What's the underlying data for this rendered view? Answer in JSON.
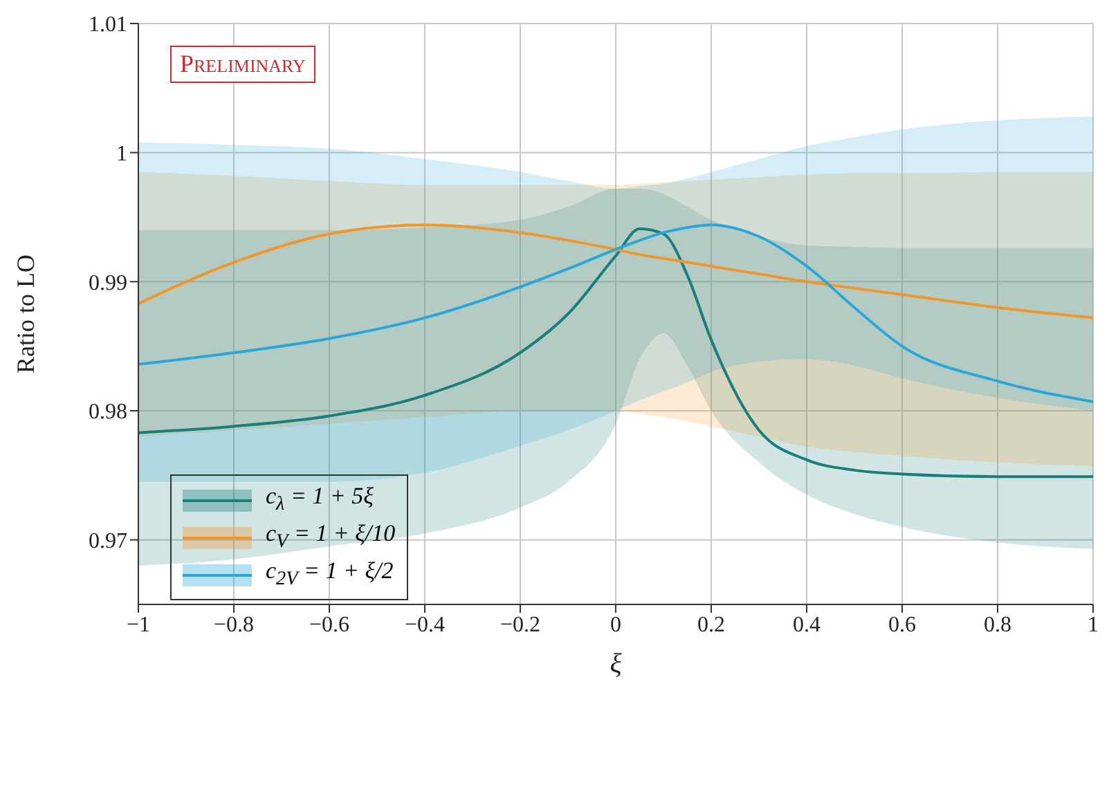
{
  "chart_data": {
    "type": "line",
    "xlabel": "ξ",
    "ylabel": "Ratio to LO",
    "annotations": [
      "Preliminary"
    ],
    "x": [
      -1,
      -0.8,
      -0.6,
      -0.4,
      -0.2,
      -0.1,
      0,
      0.05,
      0.1,
      0.15,
      0.2,
      0.3,
      0.4,
      0.5,
      0.6,
      0.8,
      1
    ],
    "series": [
      {
        "name": "c$_{λ}$ = 1 + 5ξ",
        "color": "#1a7f7a",
        "values": [
          0.9783,
          0.9788,
          0.9796,
          0.9812,
          0.9845,
          0.9875,
          0.992,
          0.9941,
          0.9937,
          0.9905,
          0.9855,
          0.9785,
          0.9762,
          0.9754,
          0.9751,
          0.9749,
          0.9749
        ],
        "upper": [
          0.994,
          0.994,
          0.994,
          0.9942,
          0.9948,
          0.9958,
          0.9972,
          0.9972,
          0.9968,
          0.9958,
          0.9948,
          0.9935,
          0.9928,
          0.9927,
          0.9926,
          0.9926,
          0.9926
        ],
        "lower": [
          0.968,
          0.9685,
          0.9695,
          0.9705,
          0.9725,
          0.9745,
          0.979,
          0.984,
          0.986,
          0.9835,
          0.98,
          0.976,
          0.9735,
          0.972,
          0.971,
          0.9698,
          0.9693
        ]
      },
      {
        "name": "c$_{V}$ = 1 + ξ/10",
        "color": "#f0962a",
        "values": [
          0.9883,
          0.9915,
          0.9937,
          0.9944,
          0.9938,
          0.9932,
          0.9925,
          0.9921,
          0.9918,
          0.9915,
          0.9912,
          0.9906,
          0.99,
          0.9895,
          0.989,
          0.988,
          0.9872
        ],
        "upper": [
          0.9985,
          0.9982,
          0.9978,
          0.9975,
          0.9975,
          0.9975,
          0.9975,
          0.9976,
          0.9977,
          0.9978,
          0.9979,
          0.9981,
          0.9983,
          0.9984,
          0.9984,
          0.9985,
          0.9985
        ],
        "lower": [
          0.978,
          0.9785,
          0.979,
          0.9795,
          0.98,
          0.98,
          0.98,
          0.9798,
          0.9795,
          0.9792,
          0.9788,
          0.978,
          0.9772,
          0.9768,
          0.9765,
          0.976,
          0.9757
        ]
      },
      {
        "name": "c$_{2V}$ = 1 + ξ/2",
        "color": "#2aa7d8",
        "values": [
          0.9836,
          0.9845,
          0.9856,
          0.9872,
          0.9896,
          0.991,
          0.9925,
          0.9932,
          0.9938,
          0.9942,
          0.9944,
          0.9935,
          0.9912,
          0.988,
          0.985,
          0.9823,
          0.9807
        ],
        "upper": [
          1.0008,
          1.0006,
          1.0003,
          0.9995,
          0.9985,
          0.9978,
          0.9972,
          0.9974,
          0.9976,
          0.998,
          0.9985,
          0.9995,
          1.0005,
          1.0012,
          1.0018,
          1.0025,
          1.0028
        ],
        "lower": [
          0.9745,
          0.9745,
          0.9745,
          0.9752,
          0.9773,
          0.9785,
          0.98,
          0.9808,
          0.9815,
          0.9822,
          0.983,
          0.9838,
          0.984,
          0.9835,
          0.9825,
          0.981,
          0.98
        ]
      }
    ],
    "xlim": [
      -1,
      1
    ],
    "xticks": [
      -1,
      -0.8,
      -0.6,
      -0.4,
      -0.2,
      0,
      0.2,
      0.4,
      0.6,
      0.8,
      1
    ],
    "ylim": [
      0.965,
      1.01
    ],
    "yticks": [
      0.97,
      0.98,
      0.99,
      1,
      1.01
    ],
    "grid": true,
    "legend": "bottom left",
    "marker": "none",
    "line_style": "solid"
  }
}
